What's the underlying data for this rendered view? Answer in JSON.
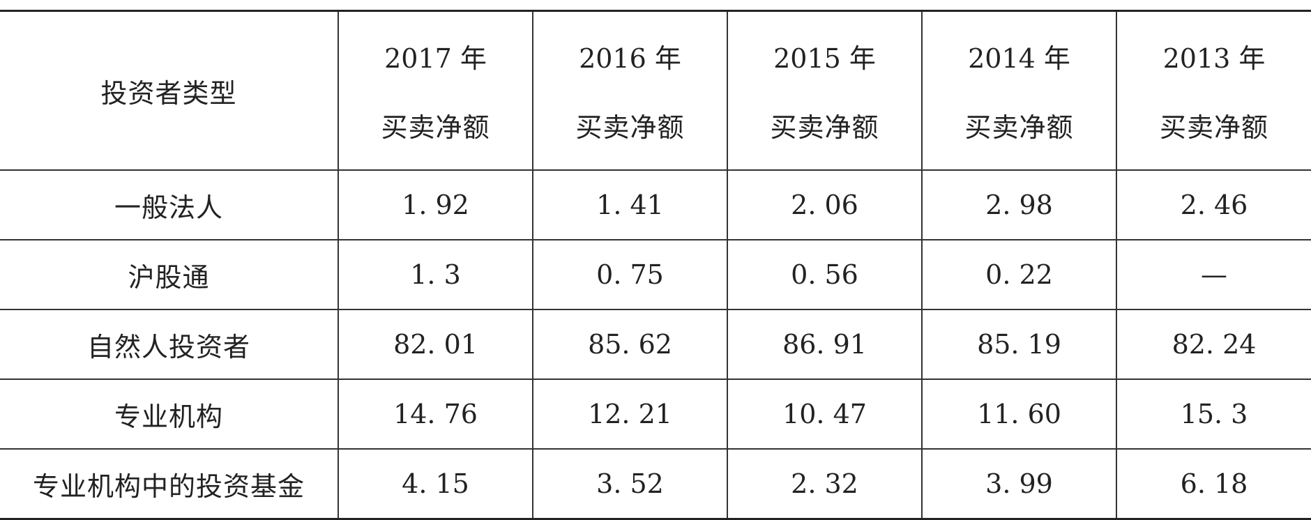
{
  "table": {
    "corner_label": "投资者类型",
    "years": [
      "2017 年",
      "2016 年",
      "2015 年",
      "2014 年",
      "2013 年"
    ],
    "subheader": "买卖净额",
    "rows": [
      {
        "type": "一般法人",
        "values": [
          "1. 92",
          "1. 41",
          "2. 06",
          "2. 98",
          "2. 46"
        ]
      },
      {
        "type": "沪股通",
        "values": [
          "1. 3",
          "0. 75",
          "0. 56",
          "0. 22",
          "—"
        ]
      },
      {
        "type": "自然人投资者",
        "values": [
          "82. 01",
          "85. 62",
          "86. 91",
          "85. 19",
          "82. 24"
        ]
      },
      {
        "type": "专业机构",
        "values": [
          "14. 76",
          "12. 21",
          "10. 47",
          "11. 60",
          "15. 3"
        ]
      },
      {
        "type": "专业机构中的投资基金",
        "values": [
          "4. 15",
          "3. 52",
          "2. 32",
          "3. 99",
          "6. 18"
        ]
      }
    ]
  }
}
